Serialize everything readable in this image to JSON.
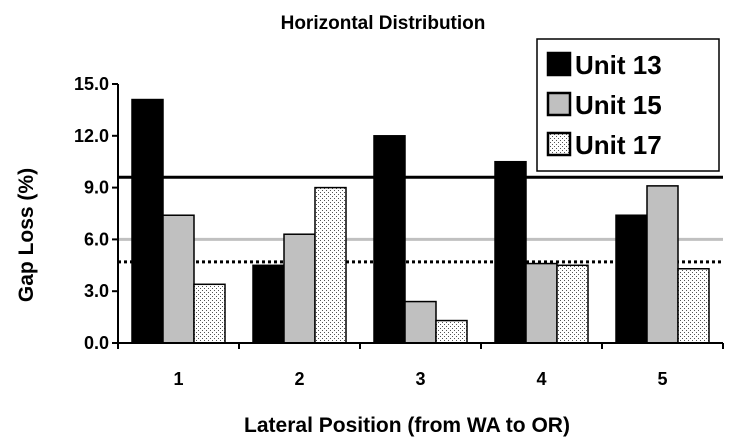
{
  "chart_data": {
    "type": "bar",
    "title": "Horizontal Distribution",
    "xlabel": "Lateral Position (from WA to OR)",
    "ylabel": "Gap Loss (%)",
    "ylim": [
      0,
      15
    ],
    "yticks": [
      "0.0",
      "3.0",
      "6.0",
      "9.0",
      "12.0",
      "15.0"
    ],
    "categories": [
      "1",
      "2",
      "3",
      "4",
      "5"
    ],
    "series": [
      {
        "name": "Unit 13",
        "values": [
          14.1,
          4.5,
          12.0,
          10.5,
          7.4
        ],
        "fill": "#000000"
      },
      {
        "name": "Unit 15",
        "values": [
          7.4,
          6.3,
          2.4,
          4.6,
          9.1
        ],
        "fill": "#c0c0c0"
      },
      {
        "name": "Unit 17",
        "values": [
          3.4,
          9.0,
          1.3,
          4.5,
          4.3
        ],
        "fill": "dots"
      }
    ],
    "reference_lines": [
      {
        "value": 9.6,
        "style": "solid",
        "color": "#000000"
      },
      {
        "value": 6.0,
        "style": "solid",
        "color": "#c0c0c0"
      },
      {
        "value": 4.7,
        "style": "dotted",
        "color": "#000000"
      }
    ],
    "legend_position": "top-right",
    "grid": false
  }
}
